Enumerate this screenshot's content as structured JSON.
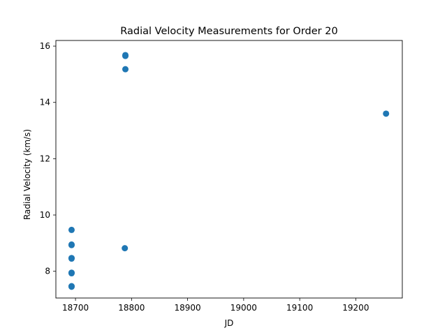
{
  "chart_data": {
    "type": "scatter",
    "title": "Radial Velocity Measurements for Order 20",
    "xlabel": "JD",
    "ylabel": "Radial Velocity (km/s)",
    "xlim": [
      18665,
      19283
    ],
    "ylim": [
      7.05,
      16.2
    ],
    "xticks": [
      18700,
      18800,
      18900,
      19000,
      19100,
      19200
    ],
    "yticks": [
      8,
      10,
      12,
      14,
      16
    ],
    "grid": false,
    "legend": "none",
    "color": "#1f77b4",
    "series": [
      {
        "x": [
          18693,
          18693,
          18693,
          18693,
          18693,
          18693,
          18693,
          18693,
          18693,
          18788,
          18789,
          18789,
          18789,
          19254
        ],
        "y": [
          9.47,
          8.95,
          8.93,
          8.47,
          8.45,
          7.95,
          7.93,
          7.47,
          7.45,
          8.82,
          15.68,
          15.65,
          15.18,
          13.6
        ]
      }
    ]
  }
}
